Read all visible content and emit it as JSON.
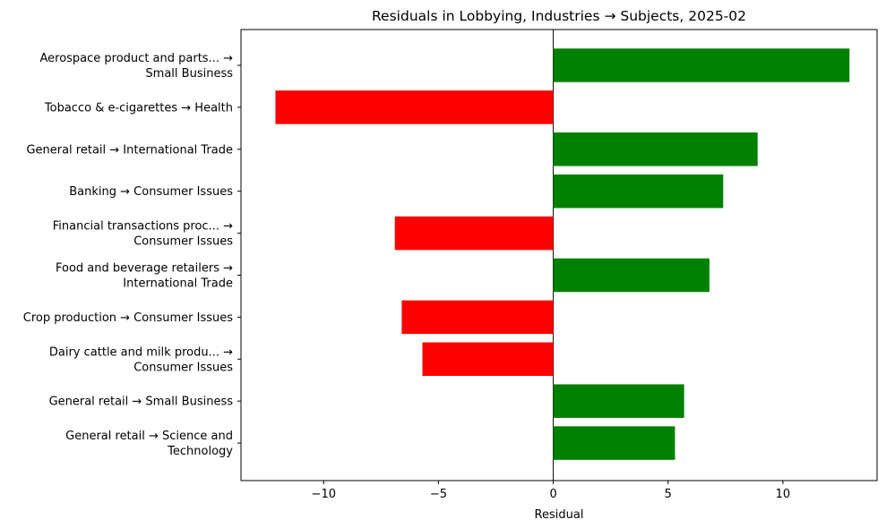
{
  "chart_data": {
    "type": "bar",
    "orientation": "horizontal",
    "title": "Residuals in Lobbying, Industries → Subjects, 2025-02",
    "xlabel": "Residual",
    "ylabel": "",
    "xlim": [
      -13.6,
      14.1
    ],
    "xticks": [
      -10,
      -5,
      0,
      5,
      10
    ],
    "xtick_labels": [
      "−10",
      "−5",
      "0",
      "5",
      "10"
    ],
    "grid": false,
    "legend": "none",
    "positive_color": "#008000",
    "negative_color": "#ff0000",
    "zero_line_color": "#000000",
    "categories": [
      [
        "Aerospace product and parts... →",
        "Small Business"
      ],
      [
        "Tobacco & e-cigarettes → Health"
      ],
      [
        "General retail → International Trade"
      ],
      [
        "Banking → Consumer Issues"
      ],
      [
        "Financial transactions proc... →",
        "Consumer Issues"
      ],
      [
        "Food and beverage retailers →",
        "International Trade"
      ],
      [
        "Crop production → Consumer Issues"
      ],
      [
        "Dairy cattle and milk produ... →",
        "Consumer Issues"
      ],
      [
        "General retail → Small Business"
      ],
      [
        "General retail → Science and",
        "Technology"
      ]
    ],
    "values": [
      12.9,
      -12.1,
      8.9,
      7.4,
      -6.9,
      6.8,
      -6.6,
      -5.7,
      5.7,
      5.3
    ]
  }
}
